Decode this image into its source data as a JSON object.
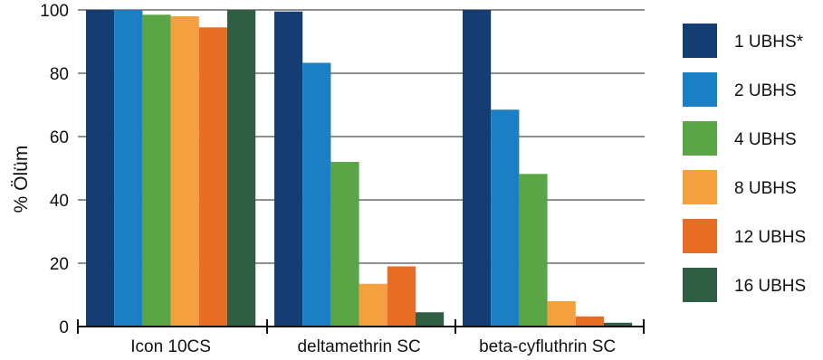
{
  "chart_data": {
    "type": "bar",
    "ylabel": "% Ölüm",
    "xlabel": "",
    "ylim": [
      0,
      100
    ],
    "yticks": [
      "0",
      "20",
      "40",
      "60",
      "80",
      "100"
    ],
    "grid": true,
    "legend_position": "right",
    "categories": [
      "Icon 10CS",
      "deltamethrin SC",
      "beta-cyfluthrin SC"
    ],
    "series": [
      {
        "name": "1 UBHS*",
        "color": "#143e73",
        "values": [
          100,
          99.5,
          100
        ]
      },
      {
        "name": "2 UBHS",
        "color": "#1a7fc4",
        "values": [
          100,
          83.3,
          68.5
        ]
      },
      {
        "name": "4 UBHS",
        "color": "#5aa646",
        "values": [
          98.5,
          52.0,
          48.2
        ]
      },
      {
        "name": "8 UBHS",
        "color": "#f4a03f",
        "values": [
          98.0,
          13.5,
          8.0
        ]
      },
      {
        "name": "12 UBHS",
        "color": "#e86d24",
        "values": [
          94.5,
          19.0,
          3.2
        ]
      },
      {
        "name": "16 UBHS",
        "color": "#2f5e45",
        "values": [
          100,
          4.5,
          1.2
        ]
      }
    ]
  }
}
